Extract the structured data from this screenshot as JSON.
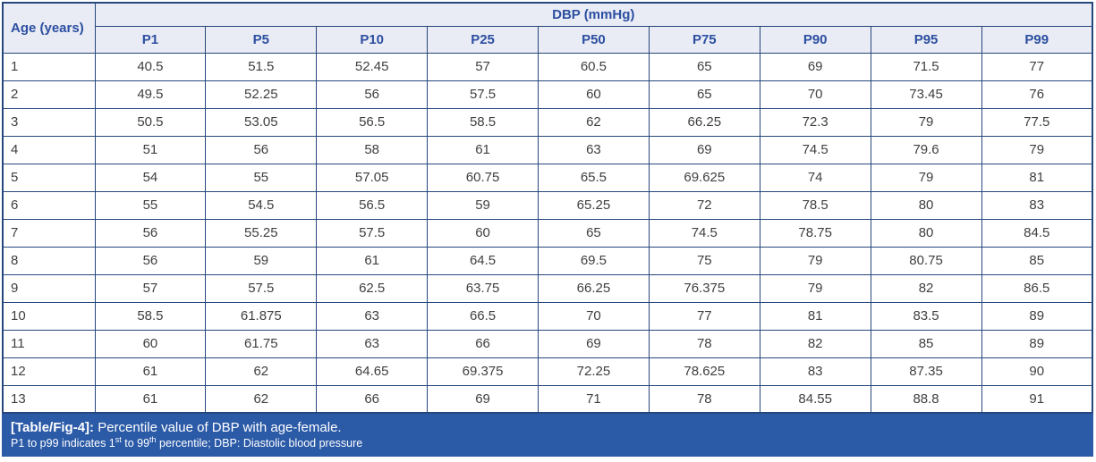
{
  "table": {
    "age_header": "Age (years)",
    "group_header": "DBP (mmHg)",
    "columns": [
      "P1",
      "P5",
      "P10",
      "P25",
      "P50",
      "P75",
      "P90",
      "P95",
      "P99"
    ],
    "rows": [
      {
        "age": "1",
        "values": [
          "40.5",
          "51.5",
          "52.45",
          "57",
          "60.5",
          "65",
          "69",
          "71.5",
          "77"
        ]
      },
      {
        "age": "2",
        "values": [
          "49.5",
          "52.25",
          "56",
          "57.5",
          "60",
          "65",
          "70",
          "73.45",
          "76"
        ]
      },
      {
        "age": "3",
        "values": [
          "50.5",
          "53.05",
          "56.5",
          "58.5",
          "62",
          "66.25",
          "72.3",
          "79",
          "77.5"
        ]
      },
      {
        "age": "4",
        "values": [
          "51",
          "56",
          "58",
          "61",
          "63",
          "69",
          "74.5",
          "79.6",
          "79"
        ]
      },
      {
        "age": "5",
        "values": [
          "54",
          "55",
          "57.05",
          "60.75",
          "65.5",
          "69.625",
          "74",
          "79",
          "81"
        ]
      },
      {
        "age": "6",
        "values": [
          "55",
          "54.5",
          "56.5",
          "59",
          "65.25",
          "72",
          "78.5",
          "80",
          "83"
        ]
      },
      {
        "age": "7",
        "values": [
          "56",
          "55.25",
          "57.5",
          "60",
          "65",
          "74.5",
          "78.75",
          "80",
          "84.5"
        ]
      },
      {
        "age": "8",
        "values": [
          "56",
          "59",
          "61",
          "64.5",
          "69.5",
          "75",
          "79",
          "80.75",
          "85"
        ]
      },
      {
        "age": "9",
        "values": [
          "57",
          "57.5",
          "62.5",
          "63.75",
          "66.25",
          "76.375",
          "79",
          "82",
          "86.5"
        ]
      },
      {
        "age": "10",
        "values": [
          "58.5",
          "61.875",
          "63",
          "66.5",
          "70",
          "77",
          "81",
          "83.5",
          "89"
        ]
      },
      {
        "age": "11",
        "values": [
          "60",
          "61.75",
          "63",
          "66",
          "69",
          "78",
          "82",
          "85",
          "89"
        ]
      },
      {
        "age": "12",
        "values": [
          "61",
          "62",
          "64.65",
          "69.375",
          "72.25",
          "78.625",
          "83",
          "87.35",
          "90"
        ]
      },
      {
        "age": "13",
        "values": [
          "61",
          "62",
          "66",
          "69",
          "71",
          "78",
          "84.55",
          "88.8",
          "91"
        ]
      }
    ]
  },
  "caption": {
    "label": "[Table/Fig-4]:",
    "title": " Percentile value of DBP with age-female.",
    "note": {
      "p1": "P1 to p99 indicates 1",
      "sup1": "st",
      "p2": " to 99",
      "sup2": "th",
      "p3": " percentile; DBP: Diastolic blood pressure"
    }
  },
  "colors": {
    "border": "#26477C",
    "header_bg": "#E9EBF5",
    "header_text": "#2C4FA0",
    "footer_bg": "#2B5AA7",
    "footer_text": "#FFFFFF",
    "data_text": "#3F3F3F",
    "row_bg": "#FFFFFF"
  }
}
